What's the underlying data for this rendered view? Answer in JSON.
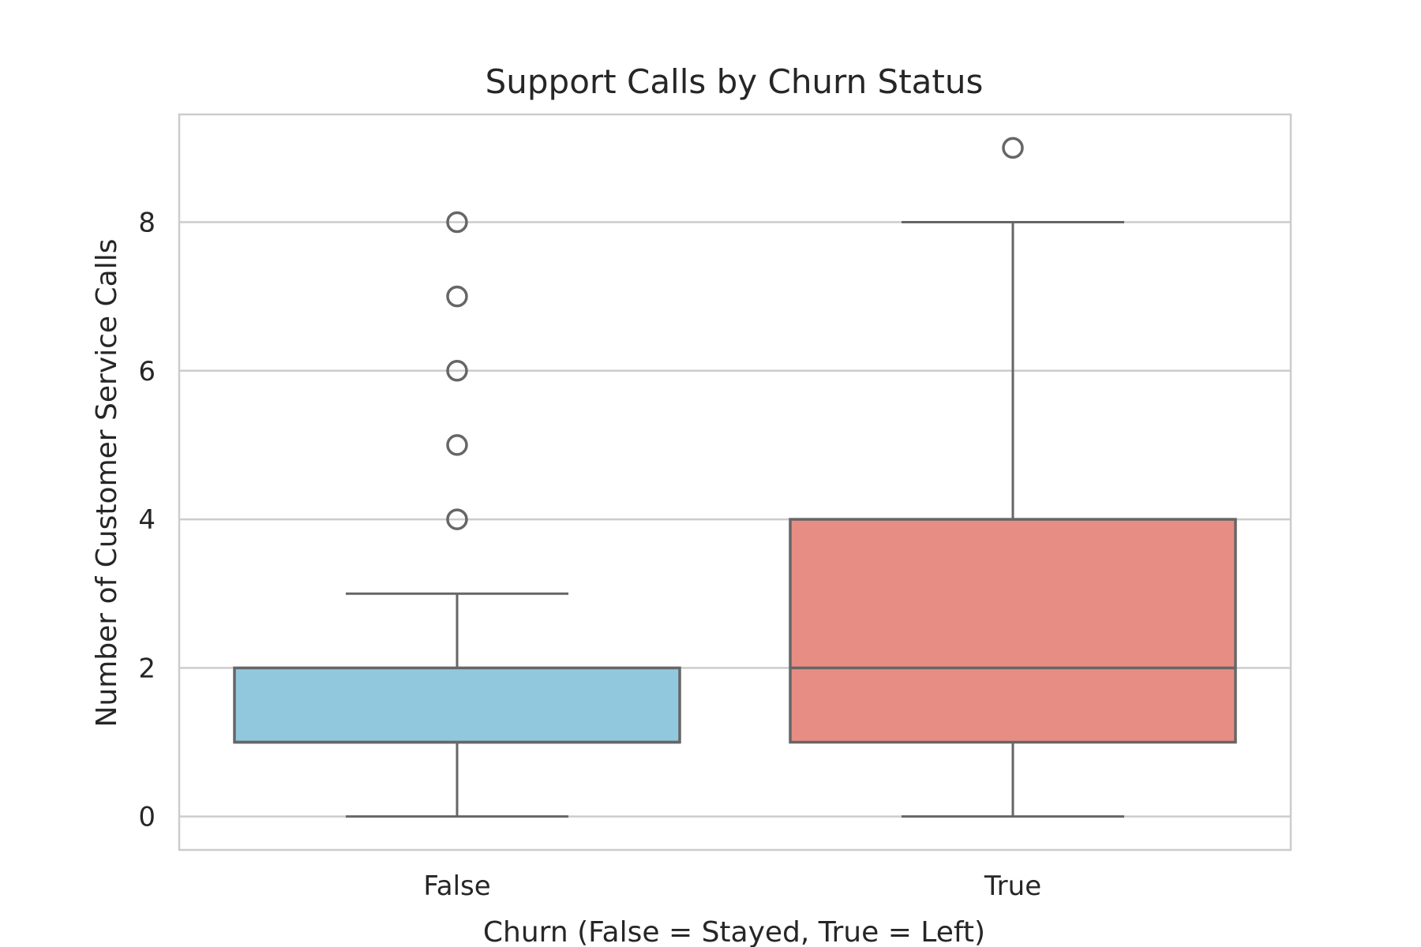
{
  "chart_data": {
    "type": "box",
    "title": "Support Calls by Churn Status",
    "xlabel": "Churn (False = Stayed, True = Left)",
    "ylabel": "Number of Customer Service Calls",
    "categories": [
      "False",
      "True"
    ],
    "ylim": [
      -0.45,
      9.45
    ],
    "yticks": [
      0,
      2,
      4,
      6,
      8
    ],
    "grid": true,
    "colors": {
      "False": "#92c8de",
      "True": "#e88d83",
      "stroke": "#666666",
      "grid": "#cccccc",
      "frame": "#cccccc",
      "text": "#262626"
    },
    "boxes": [
      {
        "category": "False",
        "whisker_low": 0,
        "q1": 1,
        "median": 1,
        "q3": 2,
        "whisker_high": 3,
        "outliers": [
          4,
          5,
          6,
          7,
          8
        ]
      },
      {
        "category": "True",
        "whisker_low": 0,
        "q1": 1,
        "median": 2,
        "q3": 4,
        "whisker_high": 8,
        "outliers": [
          9
        ]
      }
    ]
  }
}
